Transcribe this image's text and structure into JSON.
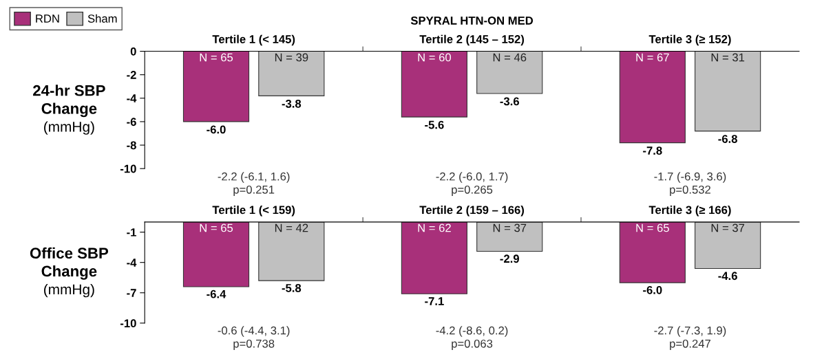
{
  "chart_data": [
    {
      "type": "bar",
      "title": "SPYRAL HTN-ON MED",
      "ylabel": "24-hr SBP\nChange\n(mmHg)",
      "categories": [
        "Tertile 1 (< 145)",
        "Tertile 2 (145 – 152)",
        "Tertile 3 (≥ 152)"
      ],
      "series": [
        {
          "name": "RDN",
          "color": "#a8307a",
          "values": [
            -6.0,
            -5.6,
            -7.8
          ],
          "value_labels": [
            "-6.0",
            "-5.6",
            "-7.8"
          ]
        },
        {
          "name": "Sham",
          "color": "#c0c0c0",
          "values": [
            -3.8,
            -3.6,
            -6.8
          ],
          "value_labels": [
            "-3.8",
            "-3.6",
            "-6.8"
          ]
        }
      ],
      "ylim": [
        -10,
        0
      ],
      "yticks": [
        0,
        -2,
        -4,
        -6,
        -8,
        -10
      ],
      "legend": "top left",
      "grid": false,
      "annotations": [
        "N = 65",
        "N = 39",
        "N = 60",
        "N = 46",
        "N = 67",
        "N = 31",
        "-2.2 (-6.1, 1.6)\np=0.251",
        "-2.2 (-6.0, 1.7)\np=0.265",
        "-1.7 (-6.9, 3.6)\np=0.532"
      ]
    },
    {
      "type": "bar",
      "ylabel": "Office SBP\nChange\n(mmHg)",
      "categories": [
        "Tertile 1 (< 159)",
        "Tertile 2 (159 – 166)",
        "Tertile 3 (≥ 166)"
      ],
      "series": [
        {
          "color": "#a8307a",
          "values": [
            -6.4,
            -7.1,
            -6.0
          ],
          "value_labels": [
            "-6.4",
            "-7.1",
            "-6.0"
          ]
        },
        {
          "color": "#c0c0c0",
          "values": [
            -5.8,
            -2.9,
            -4.6
          ],
          "value_labels": [
            "-5.8",
            "-2.9",
            "-4.6"
          ]
        }
      ],
      "ylim": [
        -10,
        0
      ],
      "yticks": [
        -1,
        -4,
        -7,
        -10
      ],
      "grid": false,
      "annotations": [
        "N = 65",
        "N = 42",
        "N = 62",
        "N = 37",
        "N = 65",
        "N = 37",
        "-0.6 (-4.4, 3.1)\np=0.738",
        "-4.2 (-8.6, 0.2)\np=0.063",
        "-2.7 (-7.3, 1.9)\np=0.247"
      ]
    }
  ]
}
